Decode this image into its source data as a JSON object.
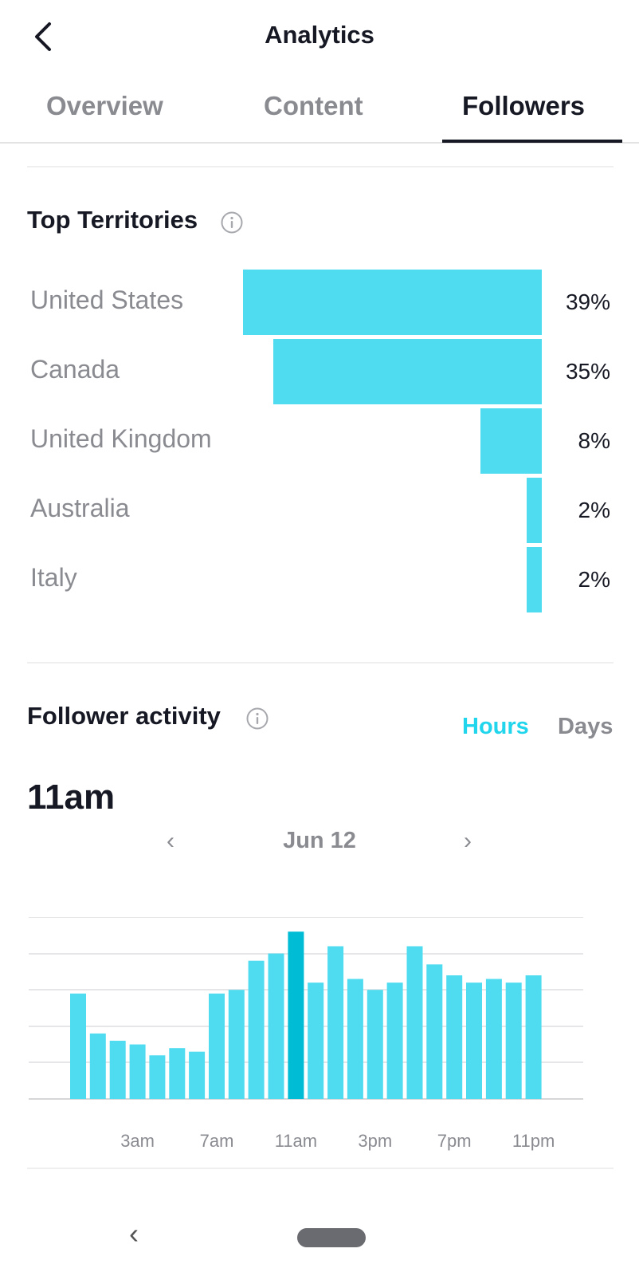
{
  "header": {
    "title": "Analytics"
  },
  "tabs": [
    {
      "label": "Overview",
      "active": false
    },
    {
      "label": "Content",
      "active": false
    },
    {
      "label": "Followers",
      "active": true
    }
  ],
  "top_territories": {
    "title": "Top Territories",
    "items": [
      {
        "name": "United States",
        "percent_label": "39%",
        "value": 39
      },
      {
        "name": "Canada",
        "percent_label": "35%",
        "value": 35
      },
      {
        "name": "United Kingdom",
        "percent_label": "8%",
        "value": 8
      },
      {
        "name": "Australia",
        "percent_label": "2%",
        "value": 2
      },
      {
        "name": "Italy",
        "percent_label": "2%",
        "value": 2
      }
    ]
  },
  "follower_activity": {
    "title": "Follower activity",
    "toggle": {
      "hours": "Hours",
      "days": "Days",
      "selected": "Hours"
    },
    "selected_hour": "11am",
    "date": {
      "label": "Jun 12",
      "prev": "‹",
      "next": "›"
    }
  },
  "colors": {
    "accent": "#20d5ec",
    "bar": "#4fdcf0",
    "bar_selected": "#00bcd4",
    "text": "#161823",
    "muted": "#8a8b91"
  },
  "chart_data": {
    "type": "bar",
    "categories": [
      "0",
      "1",
      "2",
      "3",
      "4",
      "5",
      "6",
      "7",
      "8",
      "9",
      "10",
      "11",
      "12",
      "13",
      "14",
      "15",
      "16",
      "17",
      "18",
      "19",
      "20",
      "21",
      "22",
      "23"
    ],
    "x_tick_labels": [
      {
        "label": "3am",
        "index": 3
      },
      {
        "label": "7am",
        "index": 7
      },
      {
        "label": "11am",
        "index": 11
      },
      {
        "label": "3pm",
        "index": 15
      },
      {
        "label": "7pm",
        "index": 19
      },
      {
        "label": "11pm",
        "index": 23
      }
    ],
    "values": [
      58,
      36,
      32,
      30,
      24,
      28,
      26,
      58,
      60,
      76,
      80,
      92,
      64,
      84,
      66,
      60,
      64,
      84,
      74,
      68,
      64,
      66,
      64,
      68
    ],
    "highlight_index": 11,
    "ylim": [
      0,
      100
    ],
    "gridlines": 5,
    "grid": true
  },
  "system_nav": {
    "back_icon": "back-chevron-icon",
    "home_icon": "home-pill-icon"
  }
}
